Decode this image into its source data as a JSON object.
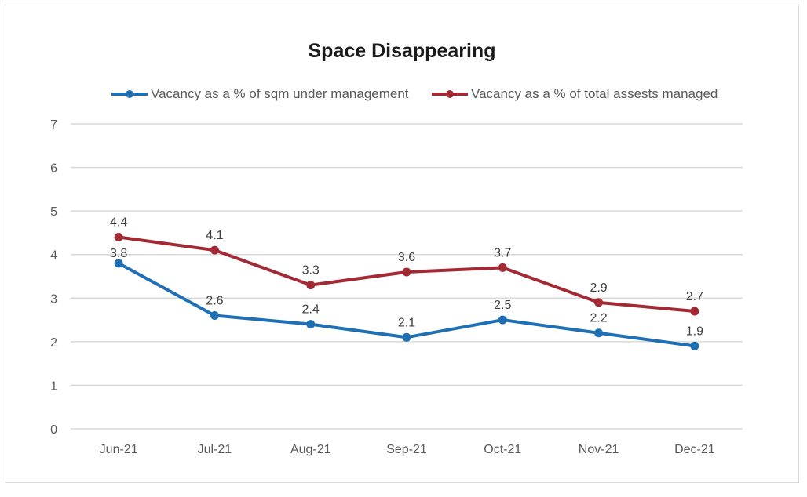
{
  "chart_data": {
    "type": "line",
    "title": "Space Disappearing",
    "categories": [
      "Jun-21",
      "Jul-21",
      "Aug-21",
      "Sep-21",
      "Oct-21",
      "Nov-21",
      "Dec-21"
    ],
    "series": [
      {
        "name": "Vacancy as a % of sqm under management",
        "values": [
          3.8,
          2.6,
          2.4,
          2.1,
          2.5,
          2.2,
          1.9
        ],
        "color": "#1f6fb5",
        "label_position": "below-first-above-rest"
      },
      {
        "name": "Vacancy as a % of total assests managed",
        "values": [
          4.4,
          4.1,
          3.3,
          3.6,
          3.7,
          2.9,
          2.7
        ],
        "color": "#a32a35",
        "label_position": "above"
      }
    ],
    "yticks": [
      "0",
      "1",
      "2",
      "3",
      "4",
      "5",
      "6",
      "7"
    ],
    "ylim": [
      0,
      7
    ],
    "grid": true,
    "legend_position": "top"
  }
}
